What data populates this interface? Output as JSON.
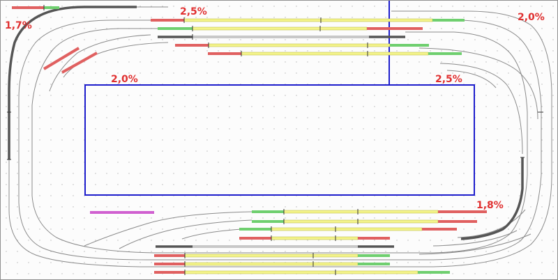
{
  "grades": {
    "g1": "1,7%",
    "g2": "2,5%",
    "g3": "2,0%",
    "g4": "2,0%",
    "g5": "2,5%",
    "g6": "1,8%"
  },
  "colors": {
    "occupied": "#e06060",
    "free": "#6fcf6f",
    "platform": "#f3f38a",
    "grey_section": "#c8c8c8",
    "special": "#d060d0",
    "boundary": "#1c1ccc",
    "grade_text": "#e03030",
    "track": "#8a8a8a"
  }
}
